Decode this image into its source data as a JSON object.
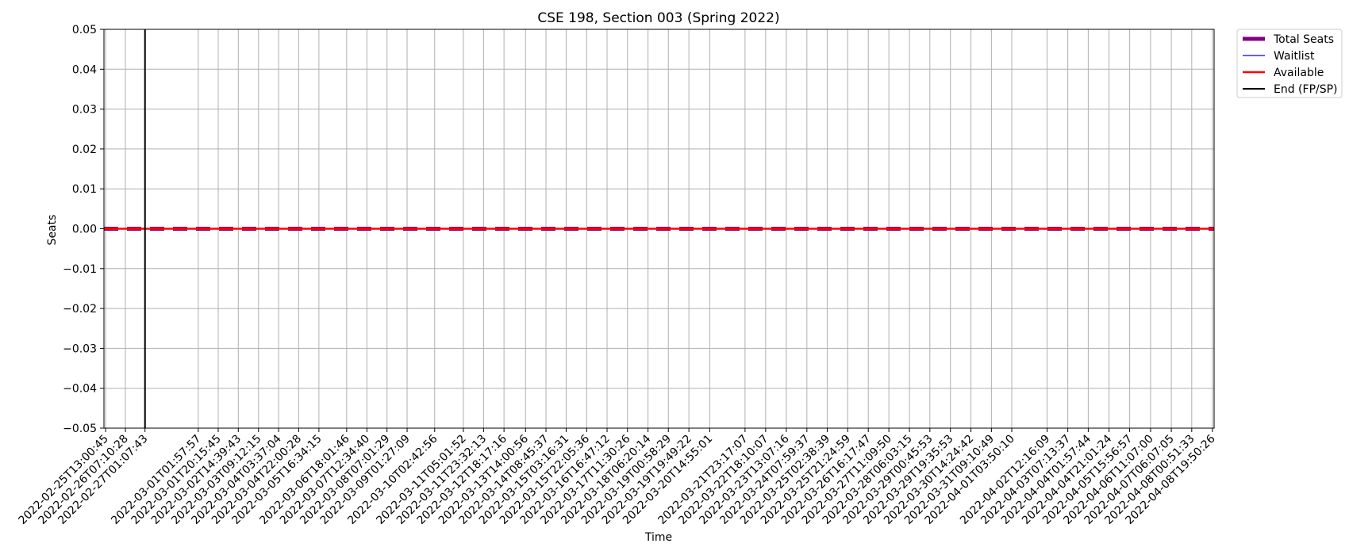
{
  "chart_data": {
    "type": "line",
    "title": "CSE 198, Section 003 (Spring 2022)",
    "xlabel": "Time",
    "ylabel": "Seats",
    "ylim": [
      -0.05,
      0.05
    ],
    "yticks": [
      "0.05",
      "0.04",
      "0.03",
      "0.02",
      "0.01",
      "0.00",
      "−0.01",
      "−0.02",
      "−0.03",
      "−0.04",
      "−0.05"
    ],
    "ytick_values": [
      0.05,
      0.04,
      0.03,
      0.02,
      0.01,
      0.0,
      -0.01,
      -0.02,
      -0.03,
      -0.04,
      -0.05
    ],
    "x": [
      "2022-02-25T13:00:45",
      "2022-02-26T07:10:28",
      "2022-02-27T01:07:43",
      "2022-03-01T01:57:57",
      "2022-03-01T20:15:45",
      "2022-03-02T14:39:43",
      "2022-03-03T09:12:15",
      "2022-03-04T03:37:04",
      "2022-03-04T22:00:28",
      "2022-03-05T16:34:15",
      "2022-03-06T18:01:46",
      "2022-03-07T12:34:40",
      "2022-03-08T07:01:29",
      "2022-03-09T01:27:09",
      "2022-03-10T02:42:56",
      "2022-03-11T05:01:52",
      "2022-03-11T23:32:13",
      "2022-03-12T18:17:16",
      "2022-03-13T14:00:56",
      "2022-03-14T08:45:37",
      "2022-03-15T03:16:31",
      "2022-03-15T22:05:36",
      "2022-03-16T16:47:12",
      "2022-03-17T11:30:26",
      "2022-03-18T06:20:14",
      "2022-03-19T00:58:29",
      "2022-03-19T19:49:22",
      "2022-03-20T14:55:01",
      "2022-03-21T23:17:07",
      "2022-03-22T18:10:07",
      "2022-03-23T13:07:16",
      "2022-03-24T07:59:37",
      "2022-03-25T02:38:39",
      "2022-03-25T21:24:59",
      "2022-03-26T16:17:47",
      "2022-03-27T11:09:50",
      "2022-03-28T06:03:15",
      "2022-03-29T00:45:53",
      "2022-03-29T19:35:53",
      "2022-03-30T14:24:42",
      "2022-03-31T09:10:49",
      "2022-04-01T03:50:10",
      "2022-04-02T12:16:09",
      "2022-04-03T07:13:37",
      "2022-04-04T01:57:44",
      "2022-04-04T21:01:24",
      "2022-04-05T15:56:57",
      "2022-04-06T11:07:00",
      "2022-04-07T06:07:05",
      "2022-04-08T00:51:33",
      "2022-04-08T19:50:26"
    ],
    "series": [
      {
        "name": "Total Seats",
        "color": "#800080",
        "style": "solid-thick",
        "value": 0
      },
      {
        "name": "Waitlist",
        "color": "#0000ff",
        "style": "solid-thin",
        "value": 0
      },
      {
        "name": "Available",
        "color": "#ff0000",
        "style": "solid",
        "value": 0
      },
      {
        "name": "End (FP/SP)",
        "color": "#000000",
        "style": "vertical-line",
        "x": "2022-02-27T01:07:43"
      }
    ],
    "grid": true,
    "legend_position": "outside-top-right"
  }
}
